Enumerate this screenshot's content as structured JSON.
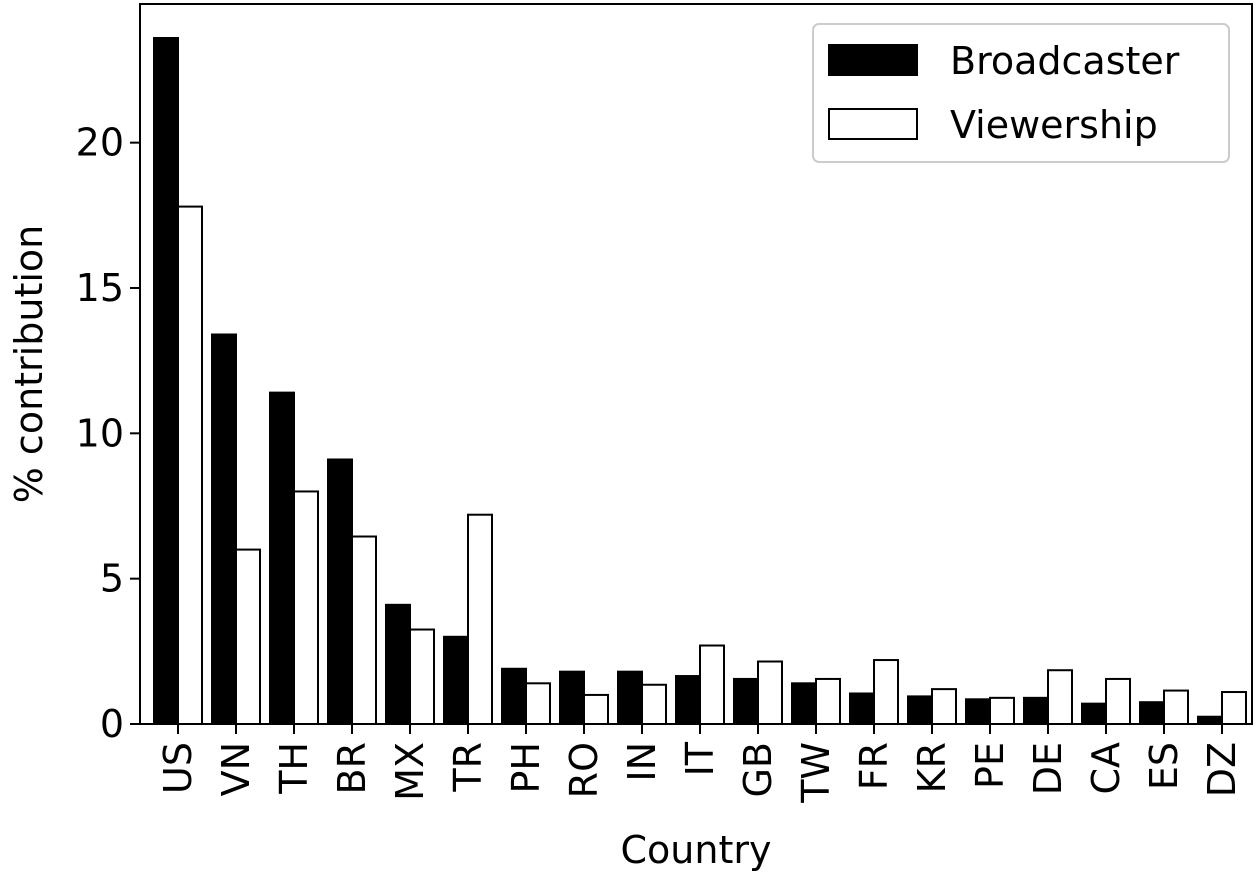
{
  "chart_data": {
    "type": "bar",
    "categories": [
      "US",
      "VN",
      "TH",
      "BR",
      "MX",
      "TR",
      "PH",
      "RO",
      "IN",
      "IT",
      "GB",
      "TW",
      "FR",
      "KR",
      "PE",
      "DE",
      "CA",
      "ES",
      "DZ"
    ],
    "series": [
      {
        "name": "Broadcaster",
        "color": "#000000",
        "values": [
          23.6,
          13.4,
          11.4,
          9.1,
          4.1,
          3.0,
          1.9,
          1.8,
          1.8,
          1.65,
          1.55,
          1.4,
          1.05,
          0.95,
          0.85,
          0.9,
          0.7,
          0.75,
          0.25
        ]
      },
      {
        "name": "Viewership",
        "color": "#ffffff",
        "values": [
          17.8,
          6.0,
          8.0,
          6.45,
          3.25,
          7.2,
          1.4,
          1.0,
          1.35,
          2.7,
          2.15,
          1.55,
          2.2,
          1.2,
          0.9,
          1.85,
          1.55,
          1.15,
          1.1
        ]
      }
    ],
    "xlabel": "Country",
    "ylabel": "% contribution",
    "ylim": [
      0,
      23.6
    ],
    "yticks": [
      0,
      5,
      10,
      15,
      20
    ],
    "legend": "top-right",
    "grid": false
  }
}
